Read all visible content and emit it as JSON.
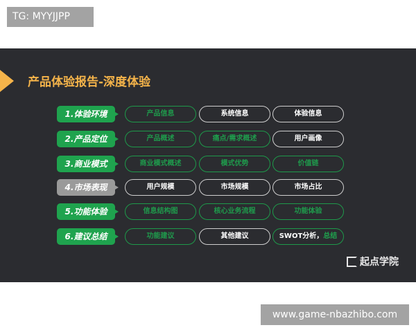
{
  "watermark_top": "TG: MYYJJPP",
  "watermark_bottom": "www.game-nbazhibo.com",
  "title": "产品体验报告-深度体验",
  "colors": {
    "background": "#2b2c30",
    "accent": "#f5b44a",
    "green": "#1fa34e",
    "gray": "#9a9a9a"
  },
  "rows": [
    {
      "label": "1.体验环境",
      "style": "green",
      "items": [
        {
          "text": "产品信息",
          "style": "green"
        },
        {
          "text": "系统信息",
          "style": "white"
        },
        {
          "text": "体验信息",
          "style": "white"
        }
      ]
    },
    {
      "label": "2.产品定位",
      "style": "green",
      "items": [
        {
          "text": "产品概述",
          "style": "green"
        },
        {
          "text": "痛点/需求概述",
          "style": "green"
        },
        {
          "text": "用户画像",
          "style": "white"
        }
      ]
    },
    {
      "label": "3.商业模式",
      "style": "green",
      "items": [
        {
          "text": "商业模式概述",
          "style": "green"
        },
        {
          "text": "模式优势",
          "style": "green"
        },
        {
          "text": "价值链",
          "style": "green"
        }
      ]
    },
    {
      "label": "4.市场表现",
      "style": "gray",
      "items": [
        {
          "text": "用户规模",
          "style": "white"
        },
        {
          "text": "市场规模",
          "style": "white"
        },
        {
          "text": "市场占比",
          "style": "white"
        }
      ]
    },
    {
      "label": "5.功能体验",
      "style": "green",
      "items": [
        {
          "text": "信息结构图",
          "style": "green"
        },
        {
          "text": "核心业务流程",
          "style": "green"
        },
        {
          "text": "功能体验",
          "style": "green"
        }
      ]
    },
    {
      "label": "6.建议总结",
      "style": "green",
      "items": [
        {
          "text": "功能建议",
          "style": "green"
        },
        {
          "text": "其他建议",
          "style": "white"
        },
        {
          "text": "SWOT分析，",
          "text2": "总结",
          "style": "green"
        }
      ]
    }
  ],
  "logo": "起点学院"
}
